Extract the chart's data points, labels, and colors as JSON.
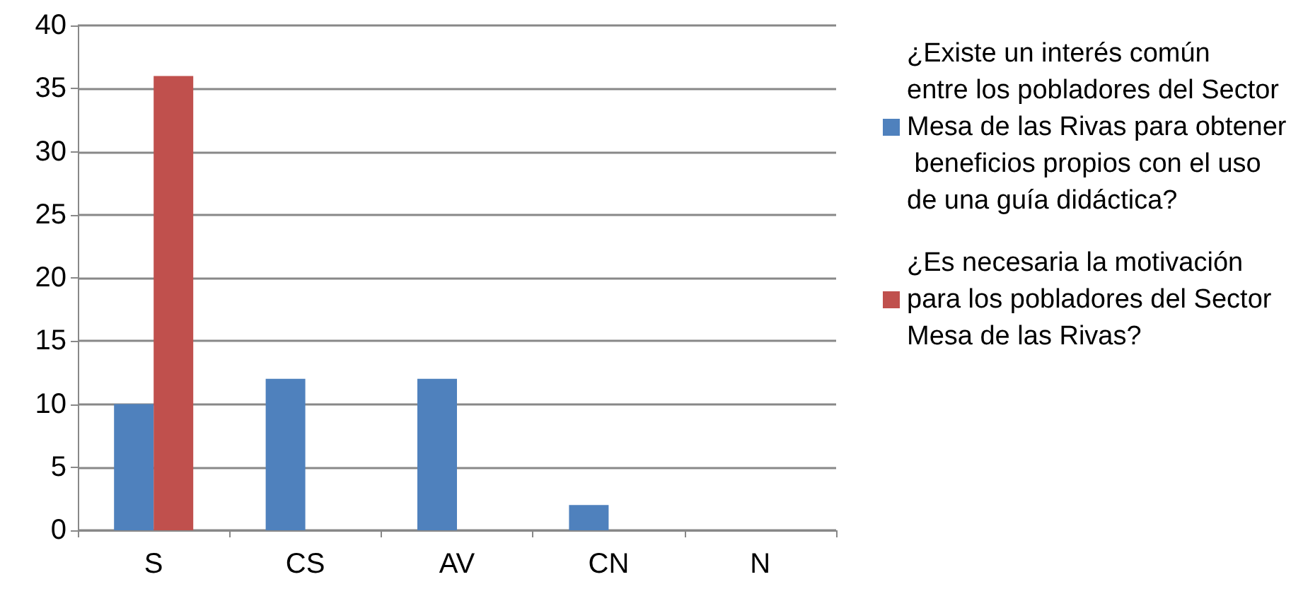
{
  "chart_data": {
    "type": "bar",
    "categories": [
      "S",
      "CS",
      "AV",
      "CN",
      "N"
    ],
    "series": [
      {
        "name": "¿Existe un interés común entre los pobladores del Sector Mesa de las Rivas para obtener beneficios propios con el uso de una guía didáctica?",
        "color": "#4f81bd",
        "values": [
          10,
          12,
          12,
          2,
          0
        ]
      },
      {
        "name": "¿Es necesaria la motivación para los pobladores del Sector Mesa de las Rivas?",
        "color": "#c0504d",
        "values": [
          36,
          0,
          0,
          0,
          0
        ]
      }
    ],
    "ylim": [
      0,
      40
    ],
    "yticks": [
      0,
      5,
      10,
      15,
      20,
      25,
      30,
      35,
      40
    ],
    "grid": "y",
    "legend": "right"
  }
}
